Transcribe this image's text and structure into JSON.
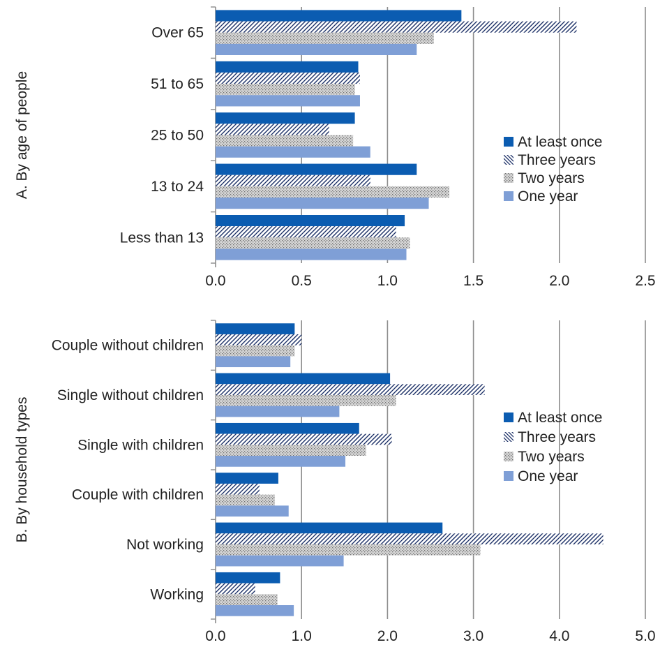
{
  "chart_data": [
    {
      "type": "bar",
      "orientation": "horizontal",
      "title": "",
      "ylabel": "A. By age of people",
      "xlabel": "",
      "xlim": [
        0,
        2.5
      ],
      "xticks": [
        "0.0",
        "0.5",
        "1.0",
        "1.5",
        "2.0",
        "2.5"
      ],
      "grid": true,
      "legend_position": "right",
      "categories": [
        "Over 65",
        "51 to 65",
        "25 to 50",
        "13 to 24",
        "Less than 13"
      ],
      "series": [
        {
          "name": "At least once",
          "pattern": "solid",
          "color": "#0b5cb1",
          "values": [
            1.43,
            0.83,
            0.81,
            1.17,
            1.1
          ]
        },
        {
          "name": "Three years",
          "pattern": "diagonal-hatch",
          "color": "#1b2f66",
          "values": [
            2.1,
            0.84,
            0.66,
            0.9,
            1.05
          ]
        },
        {
          "name": "Two years",
          "pattern": "dotted",
          "color": "#9a9a9a",
          "values": [
            1.27,
            0.81,
            0.8,
            1.36,
            1.13
          ]
        },
        {
          "name": "One year",
          "pattern": "solid",
          "color": "#7f9fd6",
          "values": [
            1.17,
            0.84,
            0.9,
            1.24,
            1.11
          ]
        }
      ]
    },
    {
      "type": "bar",
      "orientation": "horizontal",
      "title": "",
      "ylabel": "B. By household types",
      "xlabel": "",
      "xlim": [
        0,
        5.0
      ],
      "xticks": [
        "0.0",
        "1.0",
        "2.0",
        "3.0",
        "4.0",
        "5.0"
      ],
      "grid": true,
      "legend_position": "right",
      "categories": [
        "Couple without children",
        "Single without children",
        "Single with children",
        "Couple with children",
        "Not working",
        "Working"
      ],
      "series": [
        {
          "name": "At least once",
          "pattern": "solid",
          "color": "#0b5cb1",
          "values": [
            0.92,
            2.03,
            1.67,
            0.73,
            2.64,
            0.75
          ]
        },
        {
          "name": "Three years",
          "pattern": "diagonal-hatch",
          "color": "#1b2f66",
          "values": [
            1.0,
            3.13,
            2.05,
            0.51,
            4.51,
            0.46
          ]
        },
        {
          "name": "Two years",
          "pattern": "dotted",
          "color": "#9a9a9a",
          "values": [
            0.92,
            2.1,
            1.75,
            0.69,
            3.08,
            0.72
          ]
        },
        {
          "name": "One year",
          "pattern": "solid",
          "color": "#7f9fd6",
          "values": [
            0.87,
            1.44,
            1.51,
            0.85,
            1.49,
            0.91
          ]
        }
      ]
    }
  ]
}
